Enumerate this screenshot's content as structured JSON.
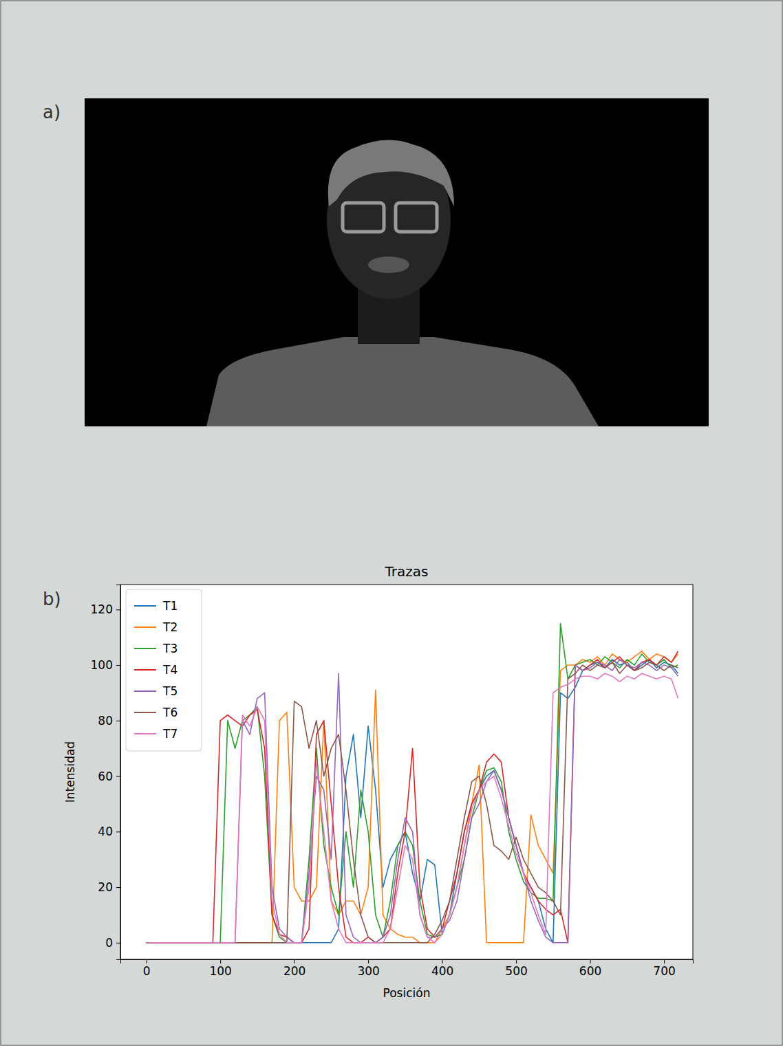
{
  "image_panel": {
    "label": "a)"
  },
  "chart_data": {
    "type": "line",
    "panel_label": "b)",
    "title": "Trazas",
    "x_label": "Posición",
    "y_label": "Intensidad",
    "legend": "upper left",
    "grid": false,
    "xlim": [
      -35,
      739
    ],
    "ylim": [
      -6,
      129
    ],
    "xticks": [
      0,
      100,
      200,
      300,
      400,
      500,
      600,
      700
    ],
    "yticks": [
      0,
      20,
      40,
      60,
      80,
      100,
      120
    ],
    "x": [
      0,
      10,
      20,
      30,
      40,
      50,
      60,
      70,
      80,
      90,
      100,
      110,
      120,
      130,
      140,
      150,
      160,
      170,
      180,
      190,
      200,
      210,
      220,
      230,
      240,
      250,
      260,
      270,
      280,
      290,
      300,
      310,
      320,
      330,
      340,
      350,
      360,
      370,
      380,
      390,
      400,
      410,
      420,
      430,
      440,
      450,
      460,
      470,
      480,
      490,
      500,
      510,
      520,
      530,
      540,
      550,
      560,
      570,
      580,
      590,
      600,
      610,
      620,
      630,
      640,
      650,
      660,
      670,
      680,
      690,
      700,
      710,
      719
    ],
    "series": [
      {
        "name": "T1",
        "color": "#1f77b4",
        "values": [
          0,
          0,
          0,
          0,
          0,
          0,
          0,
          0,
          0,
          0,
          0,
          0,
          0,
          0,
          0,
          0,
          0,
          0,
          0,
          0,
          0,
          0,
          0,
          0,
          0,
          0,
          5,
          60,
          75,
          45,
          78,
          55,
          20,
          30,
          35,
          40,
          25,
          15,
          30,
          28,
          3,
          10,
          25,
          40,
          50,
          55,
          60,
          62,
          55,
          45,
          35,
          25,
          20,
          15,
          5,
          0,
          90,
          88,
          92,
          98,
          100,
          101,
          99,
          102,
          100,
          101,
          98,
          100,
          102,
          99,
          101,
          100,
          97
        ]
      },
      {
        "name": "T2",
        "color": "#ff7f0e",
        "values": [
          0,
          0,
          0,
          0,
          0,
          0,
          0,
          0,
          0,
          0,
          0,
          0,
          0,
          0,
          0,
          0,
          0,
          0,
          80,
          83,
          20,
          15,
          15,
          20,
          80,
          15,
          10,
          15,
          15,
          10,
          20,
          91,
          10,
          5,
          3,
          2,
          2,
          0,
          0,
          0,
          5,
          10,
          20,
          35,
          50,
          64,
          0,
          0,
          0,
          0,
          0,
          0,
          46,
          35,
          30,
          25,
          98,
          100,
          100,
          102,
          101,
          103,
          100,
          104,
          102,
          101,
          103,
          105,
          102,
          104,
          103,
          101,
          104
        ]
      },
      {
        "name": "T3",
        "color": "#2ca02c",
        "values": [
          0,
          0,
          0,
          0,
          0,
          0,
          0,
          0,
          0,
          0,
          0,
          80,
          70,
          80,
          82,
          85,
          60,
          10,
          2,
          0,
          0,
          0,
          30,
          70,
          35,
          20,
          10,
          40,
          20,
          55,
          40,
          10,
          2,
          15,
          35,
          40,
          35,
          15,
          3,
          2,
          3,
          10,
          20,
          30,
          45,
          55,
          62,
          63,
          58,
          40,
          30,
          22,
          18,
          16,
          16,
          15,
          115,
          95,
          100,
          101,
          102,
          100,
          103,
          101,
          99,
          102,
          100,
          104,
          101,
          100,
          102,
          99,
          100
        ]
      },
      {
        "name": "T4",
        "color": "#d62728",
        "values": [
          0,
          0,
          0,
          0,
          0,
          0,
          0,
          0,
          0,
          0,
          80,
          82,
          80,
          78,
          82,
          84,
          70,
          10,
          3,
          2,
          0,
          0,
          5,
          75,
          80,
          50,
          20,
          2,
          0,
          0,
          2,
          0,
          2,
          5,
          25,
          40,
          70,
          20,
          5,
          2,
          5,
          15,
          25,
          40,
          50,
          55,
          65,
          68,
          65,
          45,
          35,
          25,
          20,
          15,
          12,
          10,
          12,
          0,
          100,
          98,
          100,
          102,
          99,
          101,
          103,
          100,
          98,
          101,
          102,
          100,
          103,
          101,
          105
        ]
      },
      {
        "name": "T5",
        "color": "#9467bd",
        "values": [
          0,
          0,
          0,
          0,
          0,
          0,
          0,
          0,
          0,
          0,
          0,
          0,
          0,
          80,
          75,
          88,
          90,
          20,
          5,
          2,
          0,
          0,
          25,
          60,
          55,
          30,
          97,
          10,
          2,
          0,
          0,
          0,
          2,
          10,
          30,
          45,
          40,
          10,
          2,
          2,
          5,
          8,
          15,
          30,
          45,
          50,
          58,
          62,
          55,
          45,
          35,
          25,
          15,
          8,
          2,
          0,
          0,
          0,
          100,
          98,
          99,
          101,
          100,
          98,
          102,
          100,
          99,
          101,
          100,
          98,
          100,
          99,
          96
        ]
      },
      {
        "name": "T6",
        "color": "#8c564b",
        "values": [
          0,
          0,
          0,
          0,
          0,
          0,
          0,
          0,
          0,
          0,
          0,
          0,
          0,
          0,
          0,
          0,
          0,
          0,
          0,
          0,
          87,
          85,
          70,
          80,
          60,
          70,
          75,
          55,
          30,
          10,
          2,
          0,
          0,
          0,
          0,
          0,
          0,
          0,
          0,
          3,
          8,
          15,
          30,
          45,
          58,
          60,
          50,
          35,
          33,
          30,
          38,
          30,
          25,
          20,
          18,
          15,
          10,
          95,
          97,
          100,
          98,
          100,
          99,
          101,
          97,
          100,
          98,
          99,
          101,
          100,
          98,
          100,
          99
        ]
      },
      {
        "name": "T7",
        "color": "#e377c2",
        "values": [
          0,
          0,
          0,
          0,
          0,
          0,
          0,
          0,
          0,
          0,
          0,
          0,
          0,
          82,
          78,
          85,
          80,
          15,
          3,
          0,
          0,
          0,
          20,
          65,
          40,
          15,
          5,
          0,
          0,
          0,
          0,
          0,
          0,
          5,
          20,
          35,
          30,
          10,
          2,
          0,
          3,
          10,
          20,
          35,
          48,
          55,
          58,
          60,
          52,
          42,
          32,
          25,
          18,
          10,
          3,
          90,
          92,
          93,
          95,
          96,
          96,
          95,
          97,
          96,
          94,
          96,
          95,
          97,
          96,
          95,
          96,
          95,
          88
        ]
      }
    ]
  }
}
